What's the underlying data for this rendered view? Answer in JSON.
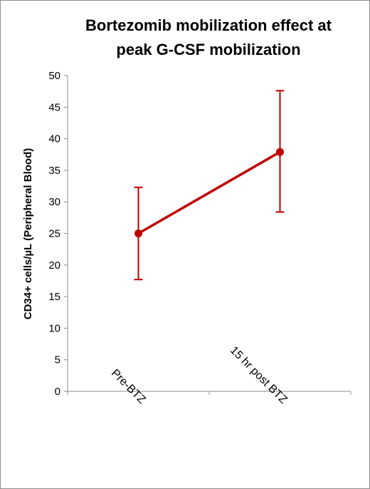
{
  "chart_data": {
    "type": "line",
    "title_lines": [
      "Bortezomib mobilization effect at",
      "peak G-CSF mobilization"
    ],
    "categories": [
      "Pre-BTZ",
      "15 hr post BTZ"
    ],
    "series": [
      {
        "values": [
          25,
          37.9
        ],
        "error_low": [
          17.7,
          28.4
        ],
        "error_high": [
          32.3,
          47.6
        ]
      }
    ],
    "xlabel": "",
    "ylabel": "CD34+ cells/µL (Peripheral Blood)",
    "ylim": [
      0,
      50
    ],
    "yticks": [
      0,
      5,
      10,
      15,
      20,
      25,
      30,
      35,
      40,
      45,
      50
    ],
    "grid": false,
    "legend": "none",
    "colors": {
      "series": "#c00000",
      "axis": "#8c8c8c"
    }
  }
}
